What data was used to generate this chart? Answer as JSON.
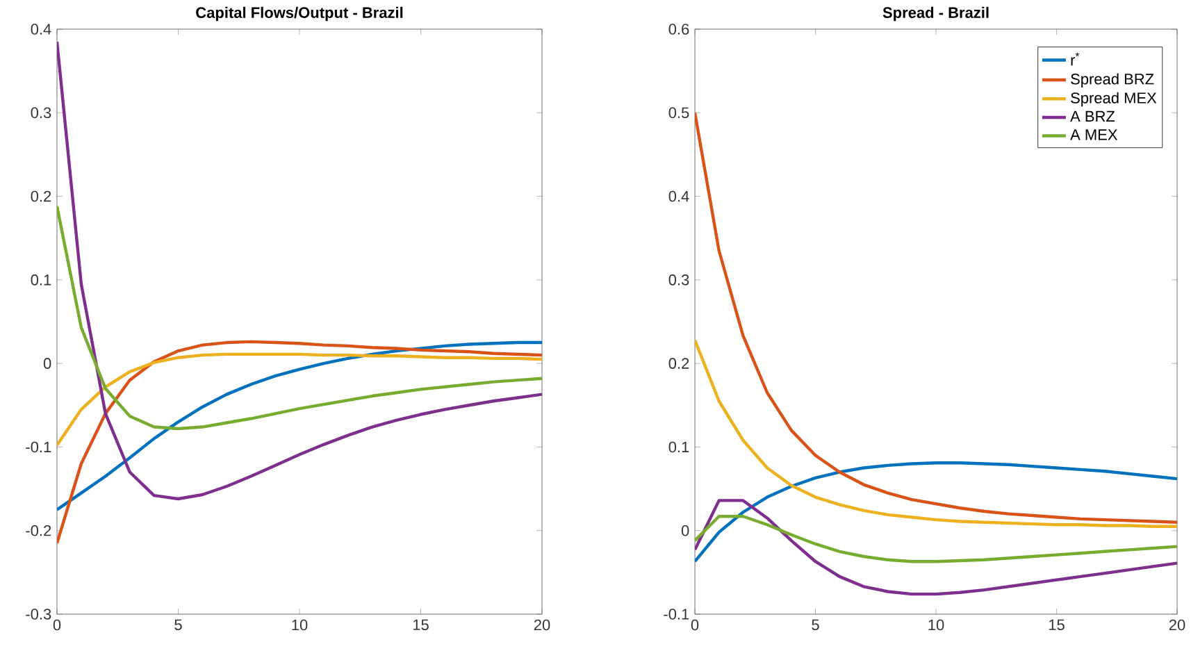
{
  "chart_data": [
    {
      "type": "line",
      "title": "Capital Flows/Output - Brazil",
      "x": [
        0,
        1,
        2,
        3,
        4,
        5,
        6,
        7,
        8,
        9,
        10,
        11,
        12,
        13,
        14,
        15,
        16,
        17,
        18,
        19,
        20
      ],
      "xlim": [
        0,
        20
      ],
      "xticks": [
        0,
        5,
        10,
        15,
        20
      ],
      "ylim": [
        -0.3,
        0.4
      ],
      "yticks": [
        -0.3,
        -0.2,
        -0.1,
        0,
        0.1,
        0.2,
        0.3,
        0.4
      ],
      "marker": "none",
      "series": [
        {
          "color": "#0072bd",
          "values": [
            -0.175,
            -0.155,
            -0.135,
            -0.113,
            -0.09,
            -0.07,
            -0.052,
            -0.037,
            -0.025,
            -0.015,
            -0.007,
            0,
            0.006,
            0.011,
            0.015,
            0.018,
            0.021,
            0.023,
            0.024,
            0.025,
            0.025
          ]
        },
        {
          "color": "#d95319",
          "values": [
            -0.215,
            -0.12,
            -0.06,
            -0.02,
            0.002,
            0.015,
            0.022,
            0.025,
            0.026,
            0.025,
            0.024,
            0.022,
            0.021,
            0.019,
            0.018,
            0.016,
            0.015,
            0.014,
            0.012,
            0.011,
            0.01
          ]
        },
        {
          "color": "#edb120",
          "values": [
            -0.098,
            -0.055,
            -0.028,
            -0.01,
            0.001,
            0.007,
            0.01,
            0.011,
            0.011,
            0.011,
            0.011,
            0.01,
            0.01,
            0.009,
            0.009,
            0.008,
            0.007,
            0.007,
            0.006,
            0.006,
            0.005
          ]
        },
        {
          "color": "#7e2f8e",
          "values": [
            0.385,
            0.095,
            -0.06,
            -0.13,
            -0.158,
            -0.162,
            -0.157,
            -0.147,
            -0.135,
            -0.122,
            -0.109,
            -0.097,
            -0.086,
            -0.076,
            -0.068,
            -0.061,
            -0.055,
            -0.05,
            -0.045,
            -0.041,
            -0.037
          ]
        },
        {
          "color": "#77ac30",
          "values": [
            0.188,
            0.043,
            -0.03,
            -0.063,
            -0.076,
            -0.078,
            -0.076,
            -0.071,
            -0.066,
            -0.06,
            -0.054,
            -0.049,
            -0.044,
            -0.039,
            -0.035,
            -0.031,
            -0.028,
            -0.025,
            -0.022,
            -0.02,
            -0.018
          ]
        }
      ]
    },
    {
      "type": "line",
      "title": "Spread - Brazil",
      "x": [
        0,
        1,
        2,
        3,
        4,
        5,
        6,
        7,
        8,
        9,
        10,
        11,
        12,
        13,
        14,
        15,
        16,
        17,
        18,
        19,
        20
      ],
      "xlim": [
        0,
        20
      ],
      "xticks": [
        0,
        5,
        10,
        15,
        20
      ],
      "ylim": [
        -0.1,
        0.6
      ],
      "yticks": [
        -0.1,
        0,
        0.1,
        0.2,
        0.3,
        0.4,
        0.5,
        0.6
      ],
      "marker": "none",
      "legend": "top right",
      "series": [
        {
          "name": "r$^{*}$",
          "color": "#0072bd",
          "values": [
            -0.037,
            -0.002,
            0.022,
            0.04,
            0.053,
            0.063,
            0.07,
            0.075,
            0.078,
            0.08,
            0.081,
            0.081,
            0.08,
            0.079,
            0.077,
            0.075,
            0.073,
            0.071,
            0.068,
            0.065,
            0.062
          ]
        },
        {
          "name": "Spread BRZ",
          "color": "#d95319",
          "values": [
            0.5,
            0.335,
            0.233,
            0.165,
            0.12,
            0.09,
            0.07,
            0.055,
            0.045,
            0.037,
            0.032,
            0.027,
            0.023,
            0.02,
            0.018,
            0.016,
            0.014,
            0.013,
            0.012,
            0.011,
            0.01
          ]
        },
        {
          "name": "Spread MEX",
          "color": "#edb120",
          "values": [
            0.228,
            0.155,
            0.108,
            0.075,
            0.054,
            0.04,
            0.031,
            0.024,
            0.019,
            0.016,
            0.013,
            0.011,
            0.01,
            0.009,
            0.008,
            0.007,
            0.007,
            0.006,
            0.006,
            0.005,
            0.005
          ]
        },
        {
          "name": "A BRZ",
          "color": "#7e2f8e",
          "values": [
            -0.023,
            0.036,
            0.036,
            0.015,
            -0.012,
            -0.037,
            -0.055,
            -0.067,
            -0.073,
            -0.076,
            -0.076,
            -0.074,
            -0.071,
            -0.067,
            -0.063,
            -0.059,
            -0.055,
            -0.051,
            -0.047,
            -0.043,
            -0.039
          ]
        },
        {
          "name": "A MEX",
          "color": "#77ac30",
          "values": [
            -0.012,
            0.017,
            0.017,
            0.007,
            -0.005,
            -0.016,
            -0.025,
            -0.031,
            -0.035,
            -0.037,
            -0.037,
            -0.036,
            -0.035,
            -0.033,
            -0.031,
            -0.029,
            -0.027,
            -0.025,
            -0.023,
            -0.021,
            -0.019
          ]
        }
      ]
    }
  ]
}
